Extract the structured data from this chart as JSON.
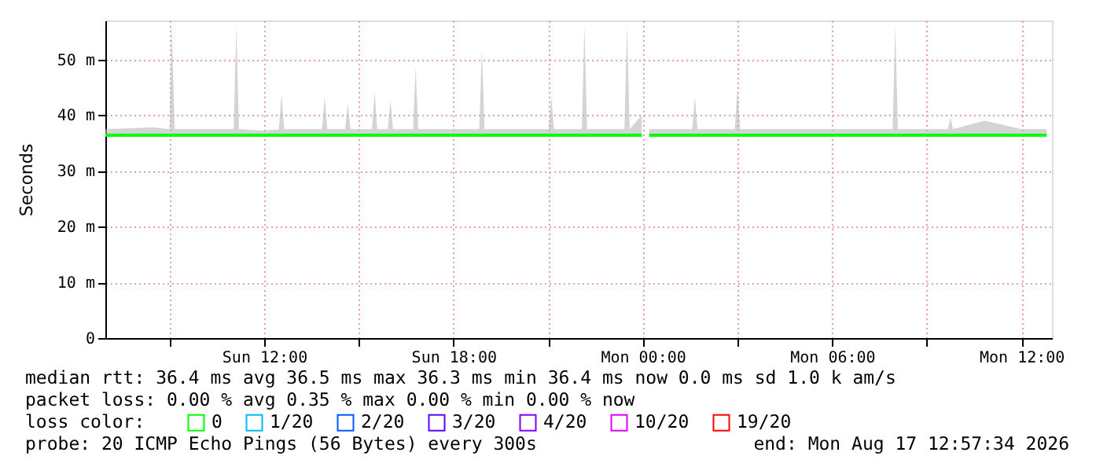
{
  "chart_data": {
    "type": "line",
    "ylabel": "Seconds",
    "legend_title": "loss color:",
    "legend": "bottom",
    "grid": true,
    "xlim": [
      "2026-08-16T06:58",
      "2026-08-17T12:58"
    ],
    "xticks": [
      {
        "value": "2026-08-16T09:00",
        "label": null
      },
      {
        "value": "2026-08-16T12:00",
        "label": "Sun 12:00"
      },
      {
        "value": "2026-08-16T15:00",
        "label": null
      },
      {
        "value": "2026-08-16T18:00",
        "label": "Sun 18:00"
      },
      {
        "value": "2026-08-16T21:00",
        "label": null
      },
      {
        "value": "2026-08-17T00:00",
        "label": "Mon 00:00"
      },
      {
        "value": "2026-08-17T03:00",
        "label": null
      },
      {
        "value": "2026-08-17T06:00",
        "label": "Mon 06:00"
      },
      {
        "value": "2026-08-17T09:00",
        "label": null
      },
      {
        "value": "2026-08-17T12:00",
        "label": "Mon 12:00"
      }
    ],
    "ylim": [
      0,
      57
    ],
    "yticks": [
      0,
      {
        "value": 10,
        "label": "10 m"
      },
      {
        "value": 20,
        "label": "20 m"
      },
      {
        "value": 30,
        "label": "30 m"
      },
      {
        "value": 40,
        "label": "40 m"
      },
      {
        "value": 50,
        "label": "50 m"
      }
    ],
    "series": [
      {
        "name": "0",
        "color": "#00ff00",
        "x": [
          "2026-08-16T06:58",
          "2026-08-16T08:30",
          "2026-08-16T09:00",
          "2026-08-16T09:04",
          "2026-08-16T09:10",
          "2026-08-16T10:00",
          "2026-08-16T11:02",
          "2026-08-16T11:07",
          "2026-08-16T11:12",
          "2026-08-16T12:00",
          "2026-08-16T12:28",
          "2026-08-16T12:33",
          "2026-08-16T12:38",
          "2026-08-16T13:50",
          "2026-08-16T13:55",
          "2026-08-16T14:00",
          "2026-08-16T14:34",
          "2026-08-16T14:39",
          "2026-08-16T14:44",
          "2026-08-16T15:25",
          "2026-08-16T15:30",
          "2026-08-16T15:35",
          "2026-08-16T15:55",
          "2026-08-16T16:00",
          "2026-08-16T16:05",
          "2026-08-16T16:43",
          "2026-08-16T16:48",
          "2026-08-16T16:53",
          "2026-08-16T18:00",
          "2026-08-16T18:49",
          "2026-08-16T18:54",
          "2026-08-16T18:59",
          "2026-08-16T20:00",
          "2026-08-16T21:01",
          "2026-08-16T21:06",
          "2026-08-16T21:11",
          "2026-08-16T22:04",
          "2026-08-16T22:09",
          "2026-08-16T22:14",
          "2026-08-16T23:25",
          "2026-08-16T23:30",
          "2026-08-16T23:35",
          "2026-08-16T23:58",
          "2026-08-17T00:05",
          "2026-08-17T00:12",
          "2026-08-17T01:34",
          "2026-08-17T01:39",
          "2026-08-17T01:44",
          "2026-08-17T02:55",
          "2026-08-17T03:00",
          "2026-08-17T03:05",
          "2026-08-17T04:30",
          "2026-08-17T07:55",
          "2026-08-17T08:00",
          "2026-08-17T08:05",
          "2026-08-17T09:40",
          "2026-08-17T09:45",
          "2026-08-17T09:50",
          "2026-08-17T10:50",
          "2026-08-17T12:00",
          "2026-08-17T12:48"
        ],
        "values": [
          36.4,
          36.4,
          36.4,
          36.4,
          36.4,
          36.4,
          36.4,
          36.4,
          36.4,
          36.4,
          36.4,
          36.4,
          36.4,
          36.4,
          36.4,
          36.4,
          36.4,
          36.4,
          36.4,
          36.4,
          36.4,
          36.4,
          36.4,
          36.4,
          36.4,
          36.4,
          36.4,
          36.4,
          36.4,
          36.4,
          36.4,
          36.4,
          36.4,
          36.4,
          36.4,
          36.4,
          36.4,
          36.4,
          36.4,
          36.4,
          36.4,
          36.4,
          36.4,
          null,
          36.4,
          36.4,
          36.4,
          36.4,
          36.4,
          36.4,
          36.4,
          36.4,
          36.4,
          36.4,
          36.4,
          36.4,
          36.4,
          36.4,
          36.4,
          36.4,
          36.4
        ],
        "lower": [
          36.2,
          36.2,
          36.2,
          36.2,
          36.2,
          36.2,
          36.2,
          36.2,
          36.2,
          36.2,
          36.2,
          36.2,
          36.2,
          36.2,
          36.2,
          36.2,
          36.2,
          36.2,
          36.2,
          36.2,
          36.2,
          36.2,
          36.2,
          36.2,
          36.2,
          36.2,
          36.2,
          36.2,
          36.2,
          36.2,
          36.2,
          36.2,
          36.2,
          36.2,
          36.2,
          36.2,
          36.2,
          36.2,
          36.2,
          36.2,
          36.2,
          36.2,
          36.2,
          null,
          36.2,
          36.2,
          36.2,
          36.2,
          36.2,
          36.2,
          36.2,
          36.2,
          36.2,
          36.2,
          36.2,
          36.2,
          36.2,
          36.2,
          36.2,
          36.2,
          36.2
        ],
        "upper": [
          37.5,
          37.8,
          37.5,
          56.2,
          37.5,
          37.5,
          37.5,
          56.2,
          37.5,
          37.2,
          37.5,
          43.8,
          37.5,
          37.5,
          43.3,
          37.5,
          37.5,
          42.1,
          37.5,
          37.5,
          44.1,
          37.5,
          37.5,
          42.7,
          37.5,
          37.5,
          48.6,
          37.5,
          37.5,
          37.5,
          52.0,
          37.5,
          37.5,
          37.5,
          43.3,
          37.5,
          37.5,
          56.2,
          37.5,
          37.5,
          56.2,
          37.5,
          40.0,
          null,
          37.5,
          37.5,
          43.3,
          37.5,
          37.5,
          44.9,
          37.5,
          37.5,
          37.5,
          56.2,
          37.5,
          37.5,
          39.6,
          37.5,
          39.0,
          37.5,
          37.5
        ]
      },
      {
        "name": "1/20",
        "color": "#00b8ff"
      },
      {
        "name": "2/20",
        "color": "#0059ff"
      },
      {
        "name": "3/20",
        "color": "#5e00ff"
      },
      {
        "name": "4/20",
        "color": "#7e00ff"
      },
      {
        "name": "10/20",
        "color": "#dd00ff"
      },
      {
        "name": "19/20",
        "color": "#ff0000"
      }
    ],
    "annotations": [
      "median rtt:  36.4 ms avg  36.5 ms max  36.3 ms min  36.4 ms now  0.0 ms sd  1.0 k am/s",
      "packet loss: 0.00 % avg  0.35 % max  0.00 % min  0.00 % now",
      "probe:       20 ICMP Echo Pings (56 Bytes) every 300s",
      "end: Mon Aug 17 12:57:34 2026"
    ]
  }
}
